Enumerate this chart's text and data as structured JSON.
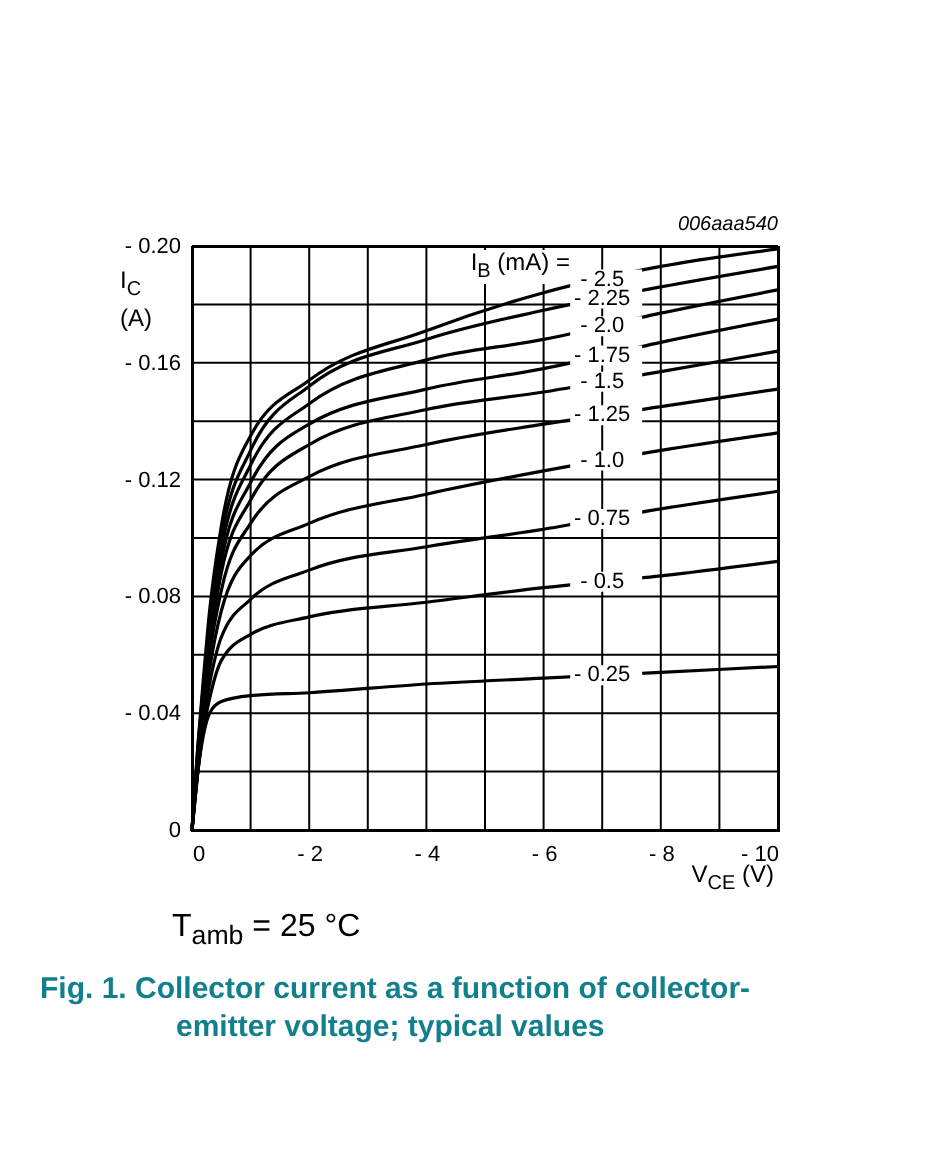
{
  "chart_data": {
    "type": "line",
    "title": "Fig. 1. Collector current as a function of collector-emitter voltage; typical values",
    "xlabel": "V$_{CE}$ (V)",
    "ylabel": "I$_{C}$ (A)",
    "legend_title": "I$_{B}$ (mA) =",
    "annotations": [
      "006aaa540",
      "T$_{amb}$ = 25 °C"
    ],
    "x": [
      0,
      -0.1,
      -0.2,
      -0.3,
      -0.5,
      -1,
      -2,
      -4,
      -6,
      -8,
      -10
    ],
    "series": [
      {
        "name": "- 2.5",
        "color": "#000000",
        "values": [
          0,
          -0.029,
          -0.053,
          -0.075,
          -0.104,
          -0.135,
          -0.154,
          -0.171,
          -0.184,
          -0.193,
          -0.199
        ]
      },
      {
        "name": "- 2.25",
        "color": "#000000",
        "values": [
          0,
          -0.028,
          -0.051,
          -0.072,
          -0.1,
          -0.13,
          -0.152,
          -0.168,
          -0.178,
          -0.186,
          -0.193
        ]
      },
      {
        "name": "- 2.0",
        "color": "#000000",
        "values": [
          0,
          -0.027,
          -0.049,
          -0.069,
          -0.096,
          -0.125,
          -0.146,
          -0.161,
          -0.168,
          -0.177,
          -0.185
        ]
      },
      {
        "name": "- 1.75",
        "color": "#000000",
        "values": [
          0,
          -0.026,
          -0.047,
          -0.066,
          -0.092,
          -0.119,
          -0.139,
          -0.151,
          -0.158,
          -0.167,
          -0.175
        ]
      },
      {
        "name": "- 1.5",
        "color": "#000000",
        "values": [
          0,
          -0.025,
          -0.045,
          -0.063,
          -0.088,
          -0.113,
          -0.132,
          -0.144,
          -0.15,
          -0.157,
          -0.164
        ]
      },
      {
        "name": "- 1.25",
        "color": "#000000",
        "values": [
          0,
          -0.024,
          -0.043,
          -0.06,
          -0.082,
          -0.105,
          -0.121,
          -0.132,
          -0.139,
          -0.145,
          -0.151
        ]
      },
      {
        "name": "- 1.0",
        "color": "#000000",
        "values": [
          0,
          -0.022,
          -0.04,
          -0.055,
          -0.075,
          -0.094,
          -0.105,
          -0.115,
          -0.123,
          -0.13,
          -0.136
        ]
      },
      {
        "name": "- 0.75",
        "color": "#000000",
        "values": [
          0,
          -0.02,
          -0.038,
          -0.05,
          -0.066,
          -0.079,
          -0.089,
          -0.097,
          -0.103,
          -0.11,
          -0.116
        ]
      },
      {
        "name": "- 0.5",
        "color": "#000000",
        "values": [
          0,
          -0.02,
          -0.035,
          -0.045,
          -0.058,
          -0.067,
          -0.073,
          -0.078,
          -0.083,
          -0.087,
          -0.092
        ]
      },
      {
        "name": "- 0.25",
        "color": "#000000",
        "values": [
          0,
          -0.02,
          -0.033,
          -0.04,
          -0.044,
          -0.046,
          -0.047,
          -0.05,
          -0.052,
          -0.054,
          -0.056
        ]
      }
    ],
    "xlim": [
      0,
      -10
    ],
    "xticks": [
      0,
      {
        "value": -1,
        "label": null
      },
      {
        "value": -2,
        "label": "- 2"
      },
      {
        "value": -3,
        "label": null
      },
      {
        "value": -4,
        "label": "- 4"
      },
      {
        "value": -5,
        "label": null
      },
      {
        "value": -6,
        "label": "- 6"
      },
      {
        "value": -7,
        "label": null
      },
      {
        "value": -8,
        "label": "- 8"
      },
      {
        "value": -9,
        "label": null
      },
      {
        "value": -10,
        "label": "- 10"
      }
    ],
    "ylim": [
      0,
      -0.2
    ],
    "yticks": [
      0,
      {
        "value": -0.02,
        "label": null
      },
      {
        "value": -0.04,
        "label": "- 0.04"
      },
      {
        "value": -0.06,
        "label": null
      },
      {
        "value": -0.08,
        "label": "- 0.08"
      },
      {
        "value": -0.1,
        "label": null
      },
      {
        "value": -0.12,
        "label": "- 0.12"
      },
      {
        "value": -0.14,
        "label": null
      },
      {
        "value": -0.16,
        "label": "- 0.16"
      },
      {
        "value": -0.18,
        "label": null
      },
      {
        "value": -0.2,
        "label": "- 0.20"
      }
    ],
    "grid": true,
    "line_style": "solid"
  }
}
